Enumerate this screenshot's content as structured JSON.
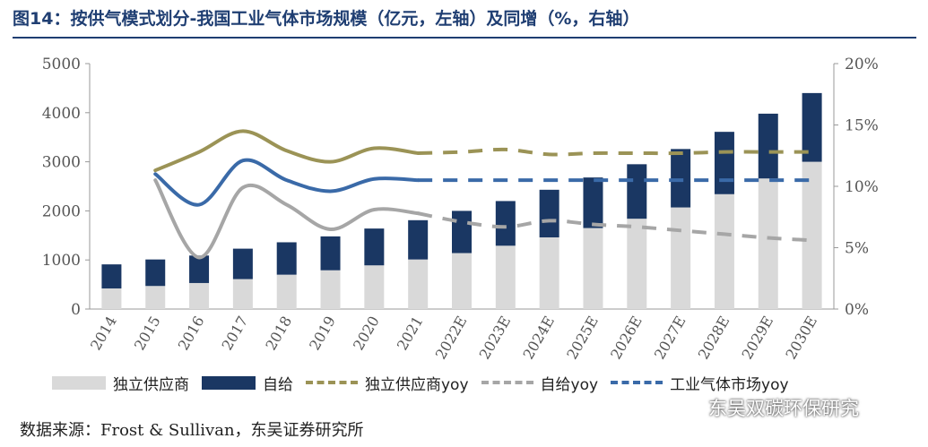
{
  "title": "图14：按供气模式划分-我国工业气体市场规模（亿元，左轴）及同增（%，右轴）",
  "source": "数据来源：Frost & Sullivan，东吴证券研究所",
  "watermark": "东吴双碳环保研究",
  "colors": {
    "independent": "#d9d9d9",
    "self_supply": "#1a3763",
    "independent_yoy": "#9b9356",
    "self_supply_yoy": "#a6a6a6",
    "market_yoy": "#3a6aa8",
    "axis_text": "#555555"
  },
  "legend": [
    {
      "key": "independent",
      "label": "独立供应商",
      "kind": "bar"
    },
    {
      "key": "self_supply",
      "label": "自给",
      "kind": "bar"
    },
    {
      "key": "independent_yoy",
      "label": "独立供应商yoy",
      "kind": "line"
    },
    {
      "key": "self_supply_yoy",
      "label": "自给yoy",
      "kind": "line"
    },
    {
      "key": "market_yoy",
      "label": "工业气体市场yoy",
      "kind": "line"
    }
  ],
  "chart_data": {
    "type": "bar",
    "stacked": true,
    "categories": [
      "2014",
      "2015",
      "2016",
      "2017",
      "2018",
      "2019",
      "2020",
      "2021",
      "2022E",
      "2023E",
      "2024E",
      "2025E",
      "2026E",
      "2027E",
      "2028E",
      "2029E",
      "2030E"
    ],
    "series": [
      {
        "name": "独立供应商",
        "axis": "left",
        "values": [
          420,
          470,
          530,
          610,
          700,
          790,
          890,
          1010,
          1140,
          1290,
          1460,
          1650,
          1840,
          2070,
          2340,
          2660,
          3000
        ]
      },
      {
        "name": "自给",
        "axis": "left",
        "values": [
          490,
          540,
          560,
          620,
          660,
          690,
          750,
          800,
          860,
          910,
          970,
          1030,
          1110,
          1190,
          1270,
          1320,
          1400
        ]
      },
      {
        "name": "独立供应商yoy",
        "axis": "right",
        "type": "line",
        "estimate_from": "2021",
        "values": [
          null,
          11.3,
          12.8,
          14.5,
          12.9,
          12.0,
          13.1,
          12.7,
          12.8,
          13.0,
          12.6,
          12.7,
          12.7,
          12.7,
          12.8,
          12.8,
          12.8
        ]
      },
      {
        "name": "自给yoy",
        "axis": "right",
        "type": "line",
        "estimate_from": "2021",
        "values": [
          null,
          10.5,
          4.2,
          9.9,
          8.5,
          6.5,
          8.1,
          7.8,
          7.1,
          6.7,
          7.2,
          6.9,
          6.7,
          6.4,
          6.1,
          5.8,
          5.6
        ]
      },
      {
        "name": "工业气体市场yoy",
        "axis": "right",
        "type": "line",
        "estimate_from": "2021",
        "values": [
          null,
          11.0,
          8.5,
          12.1,
          10.5,
          9.6,
          10.6,
          10.5,
          10.5,
          10.5,
          10.5,
          10.5,
          10.5,
          10.5,
          10.5,
          10.5,
          10.5
        ]
      }
    ],
    "ylim_left": [
      0,
      5000
    ],
    "yticks_left": [
      0,
      1000,
      2000,
      3000,
      4000,
      5000
    ],
    "ylim_right": [
      0,
      20
    ],
    "yticks_right": [
      "0%",
      "5%",
      "10%",
      "15%",
      "20%"
    ],
    "xlabel": "",
    "ylabel": "亿元",
    "y2label": "%"
  }
}
